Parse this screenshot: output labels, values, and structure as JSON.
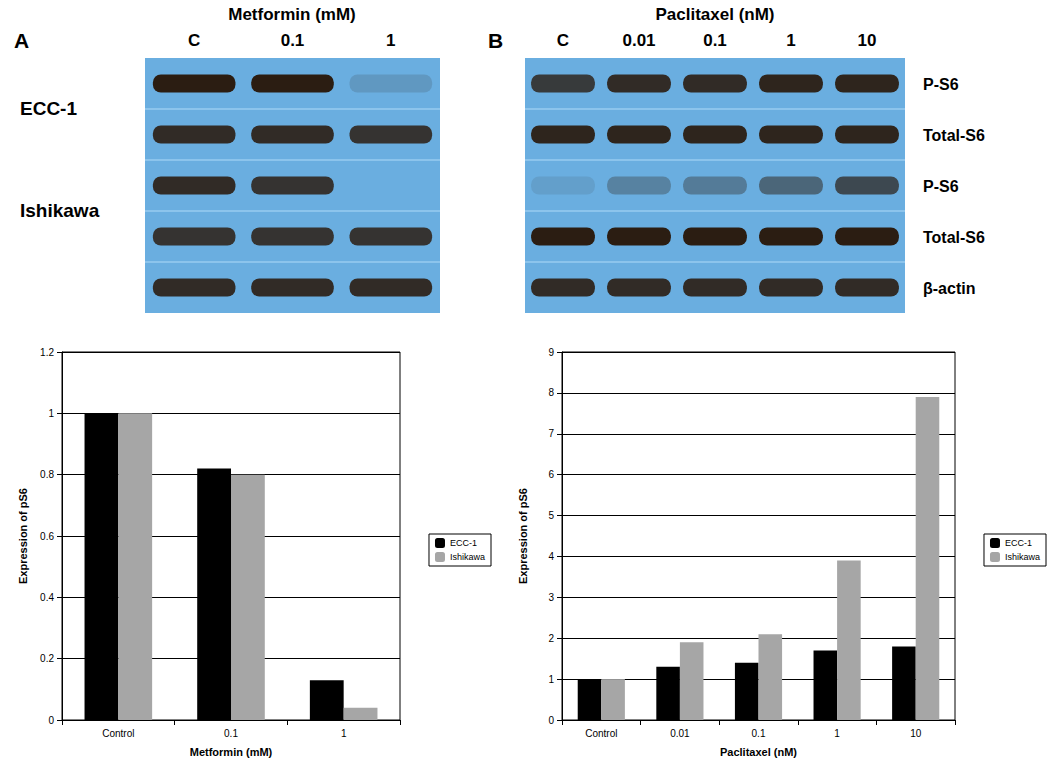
{
  "blots": [
    {
      "panel": "A",
      "treatment": "Metformin (mM)",
      "lanes": [
        "C",
        "0.1",
        "1"
      ],
      "rows": [
        {
          "cell_line": "ECC-1",
          "intensity": [
            1.0,
            1.0,
            0.15
          ]
        },
        {
          "intensity": [
            0.9,
            0.9,
            0.85
          ]
        },
        {
          "cell_line": "Ishikawa",
          "intensity": [
            0.9,
            0.85,
            0.0
          ]
        },
        {
          "intensity": [
            0.85,
            0.85,
            0.85
          ]
        },
        {
          "intensity": [
            0.9,
            0.9,
            0.9
          ]
        }
      ]
    },
    {
      "panel": "B",
      "treatment": "Paclitaxel (nM)",
      "lanes": [
        "C",
        "0.01",
        "0.1",
        "1",
        "10"
      ],
      "rows": [
        {
          "protein": "P-S6",
          "intensity": [
            0.8,
            0.9,
            0.9,
            0.95,
            0.95
          ]
        },
        {
          "protein": "Total-S6",
          "intensity": [
            0.95,
            0.95,
            0.95,
            0.95,
            0.95
          ]
        },
        {
          "protein": "P-S6",
          "intensity": [
            0.1,
            0.3,
            0.35,
            0.5,
            0.7
          ]
        },
        {
          "protein": "Total-S6",
          "intensity": [
            1.0,
            1.0,
            1.0,
            1.0,
            1.0
          ]
        },
        {
          "protein": "β-actin",
          "intensity": [
            0.9,
            0.9,
            0.9,
            0.9,
            0.9
          ]
        }
      ]
    }
  ],
  "chart_data": [
    {
      "type": "bar",
      "x_label": "Metformin (mM)",
      "y_label": "Expression of pS6",
      "categories": [
        "Control",
        "0.1",
        "1"
      ],
      "series": [
        {
          "name": "ECC-1",
          "color": "#000000",
          "values": [
            1.0,
            0.82,
            0.13
          ]
        },
        {
          "name": "Ishikawa",
          "color": "#a6a6a6",
          "values": [
            1.0,
            0.8,
            0.04
          ]
        }
      ],
      "ylim": [
        0,
        1.2
      ],
      "yticks": [
        0,
        0.2,
        0.4,
        0.6,
        0.8,
        1,
        1.2
      ],
      "grid": true,
      "legend": "right"
    },
    {
      "type": "bar",
      "x_label": "Paclitaxel (nM)",
      "y_label": "Expression of pS6",
      "categories": [
        "Control",
        "0.01",
        "0.1",
        "1",
        "10"
      ],
      "series": [
        {
          "name": "ECC-1",
          "color": "#000000",
          "values": [
            1.0,
            1.3,
            1.4,
            1.7,
            1.8
          ]
        },
        {
          "name": "Ishikawa",
          "color": "#a6a6a6",
          "values": [
            1.0,
            1.9,
            2.1,
            3.9,
            7.9
          ]
        }
      ],
      "ylim": [
        0,
        9
      ],
      "yticks": [
        0,
        1,
        2,
        3,
        4,
        5,
        6,
        7,
        8,
        9
      ],
      "grid": true,
      "legend": "right"
    }
  ]
}
